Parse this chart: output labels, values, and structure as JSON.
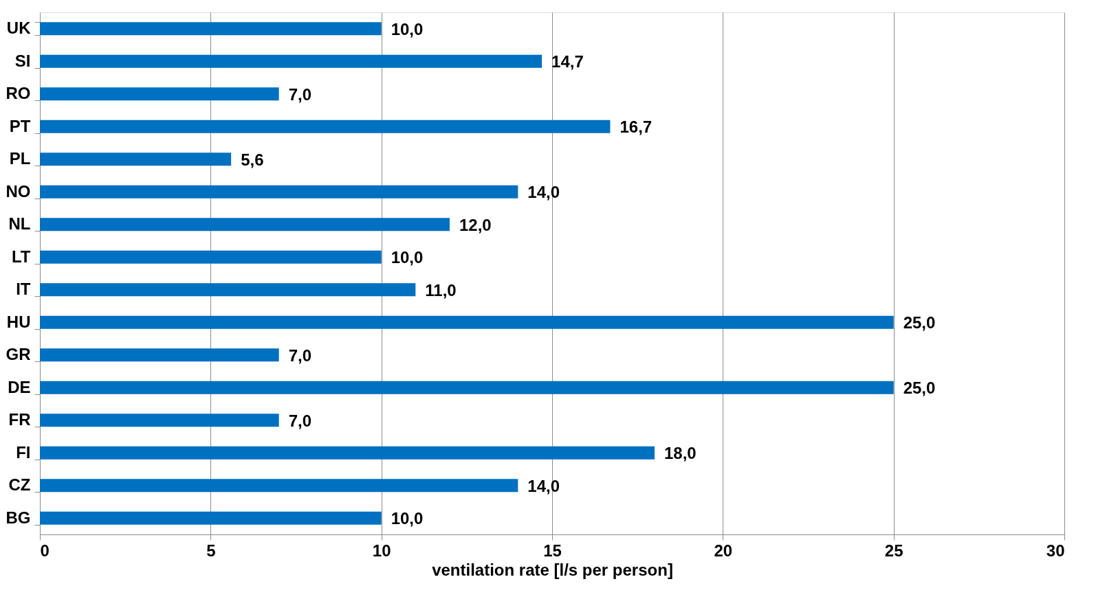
{
  "chart_data": {
    "type": "bar",
    "orientation": "horizontal",
    "xlabel": "ventilation rate [l/s per person]",
    "categories": [
      "UK",
      "SI",
      "RO",
      "PT",
      "PL",
      "NO",
      "NL",
      "LT",
      "IT",
      "HU",
      "GR",
      "DE",
      "FR",
      "FI",
      "CZ",
      "BG"
    ],
    "values": [
      10.0,
      14.7,
      7.0,
      16.7,
      5.6,
      14.0,
      12.0,
      10.0,
      11.0,
      25.0,
      7.0,
      25.0,
      7.0,
      18.0,
      14.0,
      10.0
    ],
    "value_labels": [
      "10,0",
      "14,7",
      "7,0",
      "16,7",
      "5,6",
      "14,0",
      "12,0",
      "10,0",
      "11,0",
      "25,0",
      "7,0",
      "25,0",
      "7,0",
      "18,0",
      "14,0",
      "10,0"
    ],
    "color": "#0070c0",
    "xlim": [
      0,
      30
    ],
    "xticks": [
      0,
      5,
      10,
      15,
      20,
      25,
      30
    ],
    "grid": "x"
  }
}
